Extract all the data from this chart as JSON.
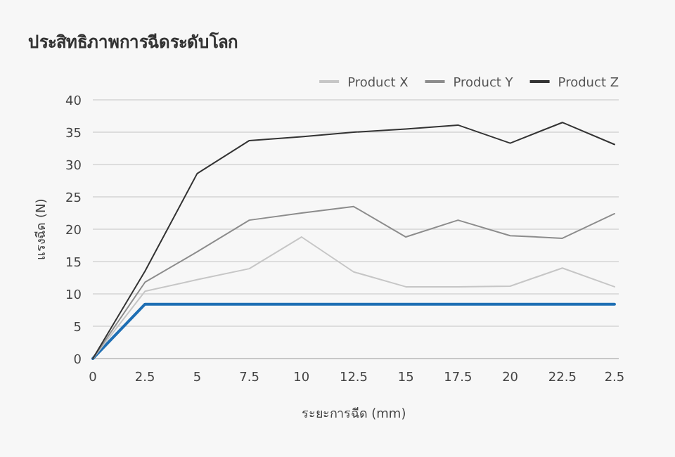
{
  "chart_data": {
    "type": "line",
    "title": "ประสิทธิภาพการฉีดระดับโลก",
    "xlabel": "ระยะการฉีด (mm)",
    "ylabel": "แรงฉีด (N)",
    "categories": [
      "0",
      "2.5",
      "5",
      "7.5",
      "10",
      "12.5",
      "15",
      "17.5",
      "20",
      "22.5",
      "2.5"
    ],
    "series": [
      {
        "color": "#1f6fb4",
        "values": [
          0,
          8.4,
          8.4,
          8.4,
          8.4,
          8.4,
          8.4,
          8.4,
          8.4,
          8.4,
          8.4
        ]
      },
      {
        "name": "Product X",
        "color": "#c6c6c6",
        "values": [
          0,
          10.4,
          12.2,
          13.9,
          18.8,
          13.4,
          11.1,
          11.1,
          11.2,
          14,
          11.1
        ]
      },
      {
        "name": "Product Y",
        "color": "#8c8c8c",
        "values": [
          0,
          11.8,
          16.5,
          21.4,
          22.5,
          23.5,
          18.8,
          21.4,
          19,
          18.6,
          22.4
        ]
      },
      {
        "name": "Product Z",
        "color": "#333333",
        "values": [
          0,
          13.5,
          28.6,
          33.7,
          34.3,
          35,
          35.5,
          36.1,
          33.3,
          36.5,
          33.1
        ]
      }
    ],
    "ylim": [
      0,
      40
    ],
    "yticks": [
      0,
      5,
      10,
      15,
      20,
      25,
      30,
      35,
      40
    ],
    "grid": "y",
    "legend": "top right",
    "marker": "none",
    "line_style": "solid"
  }
}
